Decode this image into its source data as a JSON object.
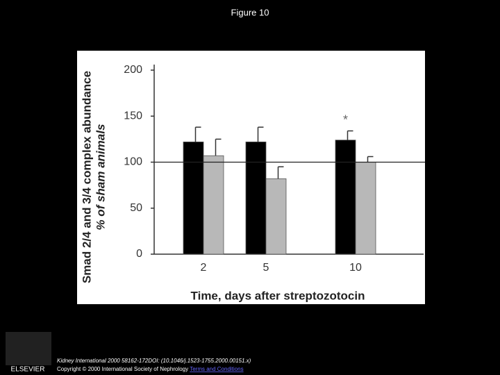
{
  "header": {
    "title": "Figure 10"
  },
  "chart_data": {
    "type": "bar",
    "y_label": "Smad 2/4 and 3/4 complex abundance",
    "y_sublabel": "% of sham animals",
    "x_label": "Time, days after streptozotocin",
    "categories": [
      "2",
      "5",
      "10"
    ],
    "series": [
      {
        "color": "#000000",
        "values": [
          122,
          122,
          124
        ],
        "errors": [
          16,
          16,
          10
        ]
      },
      {
        "color": "#b8b8b8",
        "values": [
          107,
          82,
          100
        ],
        "errors": [
          18,
          13,
          6
        ]
      }
    ],
    "ylim": [
      0,
      200
    ],
    "yticks": [
      0,
      50,
      100,
      150,
      200
    ],
    "reference_line": 100,
    "annotations": [
      {
        "text": "*",
        "category": "10",
        "value": 148
      }
    ]
  },
  "footer": {
    "citation": "Kidney International 2000 58162-172DOI: (10.1046/j.1523-1755.2000.00151.x)",
    "copyright": "Copyright © 2000 International Society of Nephrology",
    "link": "Terms and Conditions",
    "logo": "ELSEVIER"
  }
}
